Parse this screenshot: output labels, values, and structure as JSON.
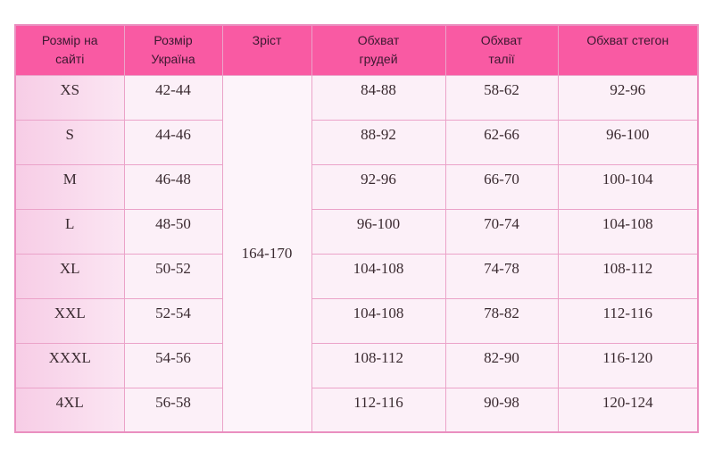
{
  "headers": [
    "Розмір на сайті",
    "Розмір Україна",
    "Зріст",
    "Обхват грудей",
    "Обхват талії",
    "Обхват стегон"
  ],
  "height": "164-170",
  "rows": [
    [
      "XS",
      "42-44",
      "84-88",
      "58-62",
      "92-96"
    ],
    [
      "S",
      "44-46",
      "88-92",
      "62-66",
      "96-100"
    ],
    [
      "M",
      "46-48",
      "92-96",
      "66-70",
      "100-104"
    ],
    [
      "L",
      "48-50",
      "96-100",
      "70-74",
      "104-108"
    ],
    [
      "XL",
      "50-52",
      "104-108",
      "74-78",
      "108-112"
    ],
    [
      "XXL",
      "52-54",
      "104-108",
      "78-82",
      "112-116"
    ],
    [
      "XXXL",
      "54-56",
      "108-112",
      "82-90",
      "116-120"
    ],
    [
      "4XL",
      "56-58",
      "112-116",
      "90-98",
      "120-124"
    ]
  ],
  "colors": {
    "header": "#f95aa3",
    "cell": "#fcf0f8",
    "border": "#eba3c9"
  }
}
